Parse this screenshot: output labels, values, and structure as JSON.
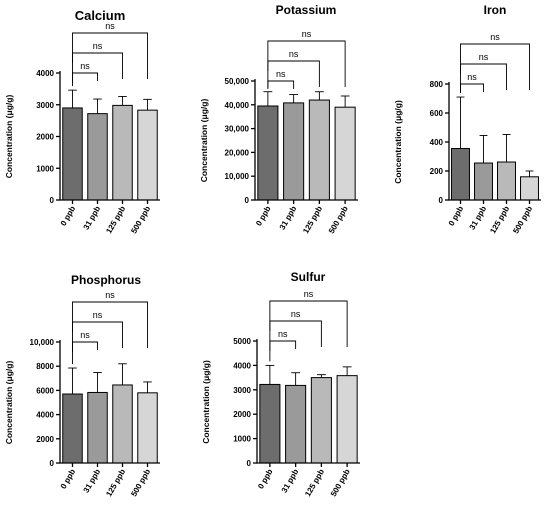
{
  "categories": [
    "0 ppb",
    "31 ppb",
    "125 ppb",
    "500 ppb"
  ],
  "bar_colors": [
    "#6d6d6d",
    "#9a9a9a",
    "#b9b9b9",
    "#d6d6d6"
  ],
  "ylabel": "Concentration (μg/g)",
  "significance_label": "ns",
  "chart_data": [
    {
      "type": "bar",
      "title": "Calcium",
      "categories": [
        "0 ppb",
        "31 ppb",
        "125 ppb",
        "500 ppb"
      ],
      "values": [
        2900,
        2720,
        2980,
        2830
      ],
      "errors": [
        560,
        460,
        280,
        340
      ],
      "ylim": [
        0,
        4000
      ],
      "yticks": [
        0,
        1000,
        2000,
        3000,
        4000
      ],
      "ytick_labels": [
        "0",
        "1000",
        "2000",
        "3000",
        "4000"
      ],
      "ylabel": "Concentration (μg/g)",
      "comparisons": [
        {
          "from": "0 ppb",
          "to": "31 ppb",
          "label": "ns"
        },
        {
          "from": "0 ppb",
          "to": "125 ppb",
          "label": "ns"
        },
        {
          "from": "0 ppb",
          "to": "500 ppb",
          "label": "ns"
        }
      ]
    },
    {
      "type": "bar",
      "title": "Potassium",
      "categories": [
        "0 ppb",
        "31 ppb",
        "125 ppb",
        "500 ppb"
      ],
      "values": [
        39500,
        40800,
        42000,
        39000
      ],
      "errors": [
        6000,
        3500,
        3500,
        4700
      ],
      "ylim": [
        0,
        50000
      ],
      "yticks": [
        0,
        10000,
        20000,
        30000,
        40000,
        50000
      ],
      "ytick_labels": [
        "0",
        "10,000",
        "20,000",
        "30,000",
        "40,000",
        "50,000"
      ],
      "ylabel": "Concentration (μg/g)",
      "comparisons": [
        {
          "from": "0 ppb",
          "to": "31 ppb",
          "label": "ns"
        },
        {
          "from": "0 ppb",
          "to": "125 ppb",
          "label": "ns"
        },
        {
          "from": "0 ppb",
          "to": "500 ppb",
          "label": "ns"
        }
      ]
    },
    {
      "type": "bar",
      "title": "Iron",
      "categories": [
        "0 ppb",
        "31 ppb",
        "125 ppb",
        "500 ppb"
      ],
      "values": [
        355,
        255,
        262,
        160
      ],
      "errors": [
        355,
        190,
        190,
        40
      ],
      "ylim": [
        0,
        800
      ],
      "yticks": [
        0,
        200,
        400,
        600,
        800
      ],
      "ytick_labels": [
        "0",
        "200",
        "400",
        "600",
        "800"
      ],
      "ylabel": "Concentration (μg/g)",
      "comparisons": [
        {
          "from": "0 ppb",
          "to": "31 ppb",
          "label": "ns"
        },
        {
          "from": "0 ppb",
          "to": "125 ppb",
          "label": "ns"
        },
        {
          "from": "0 ppb",
          "to": "500 ppb",
          "label": "ns"
        }
      ]
    },
    {
      "type": "bar",
      "title": "Phosphorus",
      "categories": [
        "0 ppb",
        "31 ppb",
        "125 ppb",
        "500 ppb"
      ],
      "values": [
        5700,
        5830,
        6450,
        5800
      ],
      "errors": [
        2150,
        1650,
        1750,
        900
      ],
      "ylim": [
        0,
        10000
      ],
      "yticks": [
        0,
        2000,
        4000,
        6000,
        8000,
        10000
      ],
      "ytick_labels": [
        "0",
        "2000",
        "4000",
        "6000",
        "8000",
        "10,000"
      ],
      "ylabel": "Concentration (μg/g)",
      "comparisons": [
        {
          "from": "0 ppb",
          "to": "31 ppb",
          "label": "ns"
        },
        {
          "from": "0 ppb",
          "to": "125 ppb",
          "label": "ns"
        },
        {
          "from": "0 ppb",
          "to": "500 ppb",
          "label": "ns"
        }
      ]
    },
    {
      "type": "bar",
      "title": "Sulfur",
      "categories": [
        "0 ppb",
        "31 ppb",
        "125 ppb",
        "500 ppb"
      ],
      "values": [
        3220,
        3180,
        3500,
        3580
      ],
      "errors": [
        780,
        520,
        120,
        360
      ],
      "ylim": [
        0,
        5000
      ],
      "yticks": [
        0,
        1000,
        2000,
        3000,
        4000,
        5000
      ],
      "ytick_labels": [
        "0",
        "1000",
        "2000",
        "3000",
        "4000",
        "5000"
      ],
      "ylabel": "Concentration (μg/g)",
      "comparisons": [
        {
          "from": "0 ppb",
          "to": "31 ppb",
          "label": "ns"
        },
        {
          "from": "0 ppb",
          "to": "125 ppb",
          "label": "ns"
        },
        {
          "from": "0 ppb",
          "to": "500 ppb",
          "label": "ns"
        }
      ]
    }
  ]
}
